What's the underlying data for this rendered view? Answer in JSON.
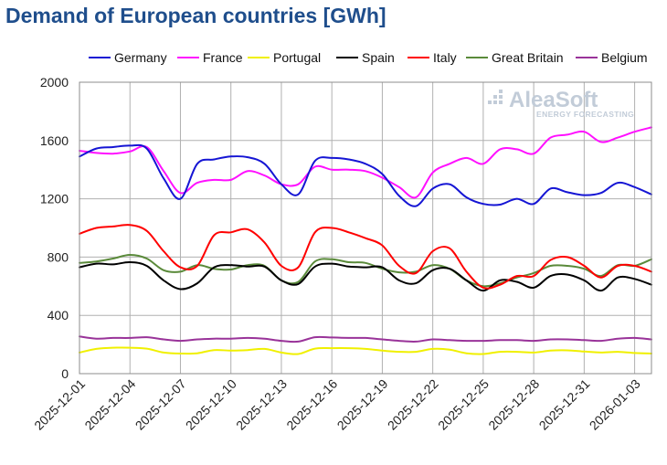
{
  "chart_data": {
    "type": "line",
    "title": "Demand of European countries [GWh]",
    "xlabel": "",
    "ylabel": "",
    "ylim": [
      0,
      2000
    ],
    "yticks": [
      0,
      400,
      800,
      1200,
      1600,
      2000
    ],
    "x_start": "2025-12-01",
    "x_end": "2026-01-04",
    "xticks": [
      "2025-12-01",
      "2025-12-04",
      "2025-12-07",
      "2025-12-10",
      "2025-12-13",
      "2025-12-16",
      "2025-12-19",
      "2025-12-22",
      "2025-12-25",
      "2025-12-28",
      "2025-12-31",
      "2026-01-03"
    ],
    "x": [
      "2025-12-01",
      "2025-12-02",
      "2025-12-03",
      "2025-12-04",
      "2025-12-05",
      "2025-12-06",
      "2025-12-07",
      "2025-12-08",
      "2025-12-09",
      "2025-12-10",
      "2025-12-11",
      "2025-12-12",
      "2025-12-13",
      "2025-12-14",
      "2025-12-15",
      "2025-12-16",
      "2025-12-17",
      "2025-12-18",
      "2025-12-19",
      "2025-12-20",
      "2025-12-21",
      "2025-12-22",
      "2025-12-23",
      "2025-12-24",
      "2025-12-25",
      "2025-12-26",
      "2025-12-27",
      "2025-12-28",
      "2025-12-29",
      "2025-12-30",
      "2025-12-31",
      "2026-01-01",
      "2026-01-02",
      "2026-01-03",
      "2026-01-04"
    ],
    "grid": true,
    "legend_position": "top",
    "watermark": {
      "name": "AleaSoft",
      "tagline": "ENERGY FORECASTING"
    },
    "series": [
      {
        "name": "Germany",
        "color": "#1515d4",
        "values": [
          1490,
          1545,
          1555,
          1565,
          1545,
          1340,
          1200,
          1440,
          1470,
          1490,
          1485,
          1440,
          1300,
          1230,
          1460,
          1480,
          1470,
          1440,
          1370,
          1220,
          1150,
          1270,
          1300,
          1210,
          1165,
          1160,
          1200,
          1165,
          1270,
          1245,
          1225,
          1240,
          1310,
          1280,
          1230
        ]
      },
      {
        "name": "France",
        "color": "#ff10ff",
        "values": [
          1530,
          1515,
          1510,
          1525,
          1555,
          1390,
          1240,
          1310,
          1330,
          1330,
          1390,
          1360,
          1300,
          1300,
          1420,
          1400,
          1400,
          1390,
          1345,
          1280,
          1210,
          1380,
          1440,
          1480,
          1440,
          1540,
          1540,
          1510,
          1620,
          1640,
          1660,
          1590,
          1620,
          1660,
          1690
        ]
      },
      {
        "name": "Portugal",
        "color": "#f0f000",
        "values": [
          145,
          170,
          178,
          178,
          172,
          145,
          138,
          140,
          162,
          158,
          162,
          170,
          145,
          135,
          172,
          175,
          175,
          170,
          158,
          150,
          150,
          170,
          165,
          140,
          135,
          150,
          150,
          145,
          158,
          160,
          152,
          145,
          150,
          142,
          138
        ]
      },
      {
        "name": "Spain",
        "color": "#000000",
        "values": [
          730,
          755,
          750,
          765,
          740,
          640,
          580,
          620,
          730,
          745,
          735,
          735,
          640,
          615,
          735,
          755,
          735,
          730,
          730,
          640,
          620,
          710,
          720,
          640,
          570,
          640,
          630,
          590,
          670,
          680,
          640,
          570,
          660,
          650,
          610
        ]
      },
      {
        "name": "Italy",
        "color": "#ff0000",
        "values": [
          960,
          1000,
          1010,
          1020,
          980,
          840,
          730,
          740,
          950,
          970,
          990,
          900,
          740,
          730,
          970,
          1000,
          970,
          930,
          880,
          740,
          690,
          840,
          860,
          700,
          590,
          610,
          670,
          670,
          780,
          800,
          740,
          660,
          740,
          740,
          700
        ]
      },
      {
        "name": "Great Britain",
        "color": "#5a8a3a",
        "values": [
          760,
          770,
          790,
          815,
          790,
          710,
          700,
          745,
          720,
          715,
          745,
          740,
          640,
          630,
          770,
          785,
          765,
          760,
          720,
          695,
          700,
          745,
          720,
          640,
          600,
          620,
          660,
          690,
          740,
          740,
          720,
          670,
          745,
          740,
          785
        ]
      },
      {
        "name": "Belgium",
        "color": "#993399",
        "values": [
          255,
          240,
          245,
          245,
          250,
          235,
          225,
          235,
          240,
          240,
          245,
          240,
          225,
          220,
          250,
          248,
          245,
          245,
          235,
          225,
          220,
          235,
          230,
          225,
          225,
          230,
          230,
          225,
          235,
          235,
          230,
          225,
          240,
          245,
          235
        ]
      }
    ]
  }
}
